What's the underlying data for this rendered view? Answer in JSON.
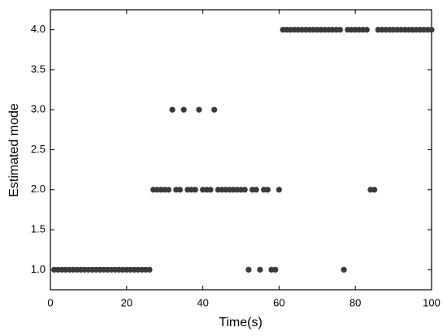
{
  "chart_data": {
    "type": "scatter",
    "x_label": "Time(s)",
    "y_label": "Estimated mode",
    "x": [
      1,
      2,
      3,
      4,
      5,
      6,
      7,
      8,
      9,
      10,
      11,
      12,
      13,
      14,
      15,
      16,
      17,
      18,
      19,
      20,
      21,
      22,
      23,
      24,
      25,
      26,
      27,
      28,
      29,
      30,
      31,
      32,
      33,
      34,
      35,
      36,
      37,
      38,
      39,
      40,
      41,
      42,
      43,
      44,
      45,
      46,
      47,
      48,
      49,
      50,
      51,
      52,
      53,
      54,
      55,
      56,
      57,
      58,
      59,
      60,
      61,
      62,
      63,
      64,
      65,
      66,
      67,
      68,
      69,
      70,
      71,
      72,
      73,
      74,
      75,
      76,
      77,
      78,
      79,
      80,
      81,
      82,
      83,
      84,
      85,
      86,
      87,
      88,
      89,
      90,
      91,
      92,
      93,
      94,
      95,
      96,
      97,
      98,
      99,
      100
    ],
    "y": [
      1,
      1,
      1,
      1,
      1,
      1,
      1,
      1,
      1,
      1,
      1,
      1,
      1,
      1,
      1,
      1,
      1,
      1,
      1,
      1,
      1,
      1,
      1,
      1,
      1,
      1,
      2,
      2,
      2,
      2,
      2,
      3,
      2,
      2,
      3,
      2,
      2,
      2,
      3,
      2,
      2,
      2,
      3,
      2,
      2,
      2,
      2,
      2,
      2,
      2,
      2,
      1,
      2,
      2,
      1,
      2,
      2,
      1,
      1,
      2,
      4,
      4,
      4,
      4,
      4,
      4,
      4,
      4,
      4,
      4,
      4,
      4,
      4,
      4,
      4,
      4,
      1,
      4,
      4,
      4,
      4,
      4,
      4,
      2,
      2,
      4,
      4,
      4,
      4,
      4,
      4,
      4,
      4,
      4,
      4,
      4,
      4,
      4,
      4,
      4
    ],
    "color": "#3a3a3a",
    "xlim": [
      0,
      100
    ],
    "xticks": [
      0,
      20,
      40,
      60,
      80,
      100
    ],
    "ylim": [
      0.75,
      4.25
    ],
    "yticks": [
      {
        "value": 1,
        "label": "1.0"
      },
      {
        "value": 1.5,
        "label": "1.5"
      },
      {
        "value": 2,
        "label": "2.0"
      },
      {
        "value": 2.5,
        "label": "2.5"
      },
      {
        "value": 3,
        "label": "3.0"
      },
      {
        "value": 3.5,
        "label": "3.5"
      },
      {
        "value": 4,
        "label": "4.0"
      }
    ]
  }
}
